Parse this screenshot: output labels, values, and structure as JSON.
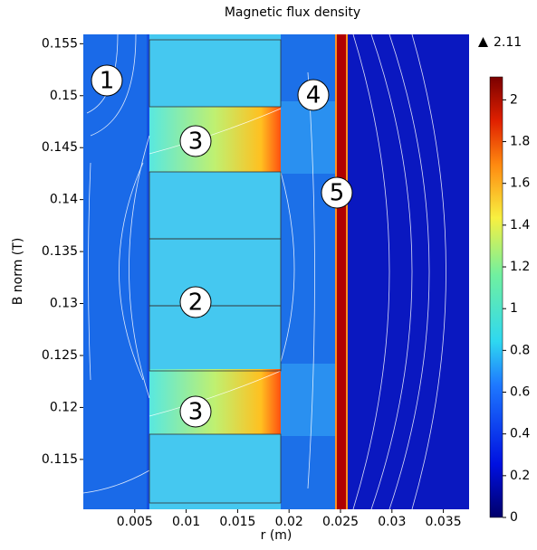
{
  "chart_data": {
    "type": "field",
    "title": "Magnetic flux density",
    "xlabel": "r (m)",
    "ylabel": "B norm (T)",
    "xlim": [
      0,
      0.0375
    ],
    "xticks": [
      0.005,
      0.01,
      0.015,
      0.02,
      0.025,
      0.03,
      0.035
    ],
    "ylim": [
      0.1102,
      0.1559
    ],
    "yticks": [
      0.115,
      0.12,
      0.125,
      0.13,
      0.135,
      0.14,
      0.145,
      0.15,
      0.155
    ],
    "colorbar": {
      "range": [
        0,
        2.11
      ],
      "ticks": [
        0,
        0.2,
        0.4,
        0.6,
        0.8,
        1,
        1.2,
        1.4,
        1.6,
        1.8,
        2
      ],
      "max": 2.11
    },
    "annotations": [
      "1",
      "2",
      "3",
      "3",
      "4",
      "5"
    ]
  }
}
